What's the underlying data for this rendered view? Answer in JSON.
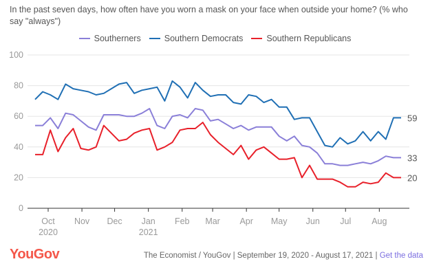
{
  "chart_data": {
    "type": "line",
    "title": "In the past seven days, how often have you worn a mask on your face when outside your home? (% who say \"always\")",
    "xlabel": "",
    "ylabel": "",
    "ylim": [
      0,
      100
    ],
    "yticks": [
      "0",
      "20",
      "40",
      "60",
      "80",
      "100"
    ],
    "ytick_values": [
      0,
      20,
      40,
      60,
      80,
      100
    ],
    "grid": true,
    "legend_position": "top-center",
    "x_start": "2020-09-19",
    "x_end": "2021-08-17",
    "x_interval_days": 7,
    "xticks": [
      {
        "label": "Oct",
        "sub": "2020",
        "date": "2020-10-01"
      },
      {
        "label": "Nov",
        "sub": "",
        "date": "2020-11-01"
      },
      {
        "label": "Dec",
        "sub": "",
        "date": "2020-12-01"
      },
      {
        "label": "Jan",
        "sub": "2021",
        "date": "2021-01-01"
      },
      {
        "label": "Feb",
        "sub": "",
        "date": "2021-02-01"
      },
      {
        "label": "Mar",
        "sub": "",
        "date": "2021-03-01"
      },
      {
        "label": "Apr",
        "sub": "",
        "date": "2021-04-01"
      },
      {
        "label": "May",
        "sub": "",
        "date": "2021-05-01"
      },
      {
        "label": "Jun",
        "sub": "",
        "date": "2021-06-01"
      },
      {
        "label": "Jul",
        "sub": "",
        "date": "2021-07-01"
      },
      {
        "label": "Aug",
        "sub": "",
        "date": "2021-08-01"
      }
    ],
    "series": [
      {
        "name": "Southerners",
        "color": "#8a7fd8",
        "end_label": "33",
        "values": [
          54,
          54,
          59,
          52,
          62,
          61,
          57,
          53,
          51,
          61,
          61,
          61,
          60,
          60,
          62,
          65,
          54,
          52,
          60,
          61,
          59,
          65,
          64,
          57,
          58,
          55,
          52,
          54,
          51,
          53,
          53,
          53,
          47,
          44,
          47,
          41,
          40,
          36,
          29,
          29,
          28,
          28,
          29,
          30,
          29,
          31,
          34,
          33,
          33
        ]
      },
      {
        "name": "Southern Democrats",
        "color": "#1f6fb4",
        "end_label": "59",
        "values": [
          71,
          76,
          74,
          71,
          81,
          78,
          77,
          76,
          74,
          75,
          78,
          81,
          82,
          75,
          77,
          78,
          79,
          70,
          83,
          79,
          72,
          82,
          77,
          73,
          74,
          74,
          69,
          68,
          74,
          73,
          69,
          71,
          66,
          66,
          58,
          59,
          59,
          50,
          41,
          40,
          46,
          42,
          44,
          50,
          44,
          50,
          45,
          59,
          59
        ]
      },
      {
        "name": "Southern Republicans",
        "color": "#e8202a",
        "end_label": "20",
        "values": [
          35,
          35,
          51,
          37,
          46,
          52,
          39,
          38,
          40,
          54,
          49,
          44,
          45,
          49,
          51,
          52,
          38,
          40,
          43,
          51,
          52,
          52,
          56,
          48,
          43,
          39,
          35,
          41,
          32,
          38,
          40,
          36,
          32,
          32,
          33,
          20,
          28,
          19,
          19,
          19,
          17,
          14,
          14,
          17,
          16,
          17,
          23,
          20,
          20
        ]
      }
    ]
  },
  "header": {
    "title": "In the past seven days, how often have you worn a mask on your face when outside your home? (% who say \"always\")"
  },
  "legend": {
    "items": [
      {
        "label": "Southerners",
        "color": "#8a7fd8"
      },
      {
        "label": "Southern Democrats",
        "color": "#1f6fb4"
      },
      {
        "label": "Southern Republicans",
        "color": "#e8202a"
      }
    ]
  },
  "footer": {
    "logo": "YouGov",
    "source": "The Economist / YouGov | September 19, 2020 - August 17, 2021 | ",
    "link": "Get the data"
  },
  "colors": {
    "logo": "#f4574a",
    "link": "#7b6ee0",
    "grid": "#e5e5e5",
    "axis": "#333333"
  }
}
